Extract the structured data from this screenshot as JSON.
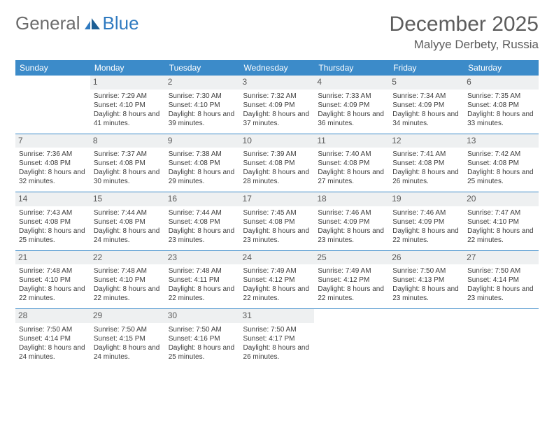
{
  "logo": {
    "text_a": "General",
    "text_b": "Blue"
  },
  "title": {
    "month": "December 2025",
    "location": "Malyye Derbety, Russia"
  },
  "colors": {
    "header_bg": "#3c8bc9",
    "header_text": "#ffffff",
    "daynum_bg": "#eef0f1",
    "border": "#3c8bc9",
    "body_text": "#3d3d3d",
    "title_text": "#5c5c5c",
    "logo_gray": "#6b6b6b",
    "logo_blue": "#2f7ac0"
  },
  "weekdays": [
    "Sunday",
    "Monday",
    "Tuesday",
    "Wednesday",
    "Thursday",
    "Friday",
    "Saturday"
  ],
  "weeks": [
    [
      null,
      {
        "num": "1",
        "sunrise": "Sunrise: 7:29 AM",
        "sunset": "Sunset: 4:10 PM",
        "daylight": "Daylight: 8 hours and 41 minutes."
      },
      {
        "num": "2",
        "sunrise": "Sunrise: 7:30 AM",
        "sunset": "Sunset: 4:10 PM",
        "daylight": "Daylight: 8 hours and 39 minutes."
      },
      {
        "num": "3",
        "sunrise": "Sunrise: 7:32 AM",
        "sunset": "Sunset: 4:09 PM",
        "daylight": "Daylight: 8 hours and 37 minutes."
      },
      {
        "num": "4",
        "sunrise": "Sunrise: 7:33 AM",
        "sunset": "Sunset: 4:09 PM",
        "daylight": "Daylight: 8 hours and 36 minutes."
      },
      {
        "num": "5",
        "sunrise": "Sunrise: 7:34 AM",
        "sunset": "Sunset: 4:09 PM",
        "daylight": "Daylight: 8 hours and 34 minutes."
      },
      {
        "num": "6",
        "sunrise": "Sunrise: 7:35 AM",
        "sunset": "Sunset: 4:08 PM",
        "daylight": "Daylight: 8 hours and 33 minutes."
      }
    ],
    [
      {
        "num": "7",
        "sunrise": "Sunrise: 7:36 AM",
        "sunset": "Sunset: 4:08 PM",
        "daylight": "Daylight: 8 hours and 32 minutes."
      },
      {
        "num": "8",
        "sunrise": "Sunrise: 7:37 AM",
        "sunset": "Sunset: 4:08 PM",
        "daylight": "Daylight: 8 hours and 30 minutes."
      },
      {
        "num": "9",
        "sunrise": "Sunrise: 7:38 AM",
        "sunset": "Sunset: 4:08 PM",
        "daylight": "Daylight: 8 hours and 29 minutes."
      },
      {
        "num": "10",
        "sunrise": "Sunrise: 7:39 AM",
        "sunset": "Sunset: 4:08 PM",
        "daylight": "Daylight: 8 hours and 28 minutes."
      },
      {
        "num": "11",
        "sunrise": "Sunrise: 7:40 AM",
        "sunset": "Sunset: 4:08 PM",
        "daylight": "Daylight: 8 hours and 27 minutes."
      },
      {
        "num": "12",
        "sunrise": "Sunrise: 7:41 AM",
        "sunset": "Sunset: 4:08 PM",
        "daylight": "Daylight: 8 hours and 26 minutes."
      },
      {
        "num": "13",
        "sunrise": "Sunrise: 7:42 AM",
        "sunset": "Sunset: 4:08 PM",
        "daylight": "Daylight: 8 hours and 25 minutes."
      }
    ],
    [
      {
        "num": "14",
        "sunrise": "Sunrise: 7:43 AM",
        "sunset": "Sunset: 4:08 PM",
        "daylight": "Daylight: 8 hours and 25 minutes."
      },
      {
        "num": "15",
        "sunrise": "Sunrise: 7:44 AM",
        "sunset": "Sunset: 4:08 PM",
        "daylight": "Daylight: 8 hours and 24 minutes."
      },
      {
        "num": "16",
        "sunrise": "Sunrise: 7:44 AM",
        "sunset": "Sunset: 4:08 PM",
        "daylight": "Daylight: 8 hours and 23 minutes."
      },
      {
        "num": "17",
        "sunrise": "Sunrise: 7:45 AM",
        "sunset": "Sunset: 4:08 PM",
        "daylight": "Daylight: 8 hours and 23 minutes."
      },
      {
        "num": "18",
        "sunrise": "Sunrise: 7:46 AM",
        "sunset": "Sunset: 4:09 PM",
        "daylight": "Daylight: 8 hours and 23 minutes."
      },
      {
        "num": "19",
        "sunrise": "Sunrise: 7:46 AM",
        "sunset": "Sunset: 4:09 PM",
        "daylight": "Daylight: 8 hours and 22 minutes."
      },
      {
        "num": "20",
        "sunrise": "Sunrise: 7:47 AM",
        "sunset": "Sunset: 4:10 PM",
        "daylight": "Daylight: 8 hours and 22 minutes."
      }
    ],
    [
      {
        "num": "21",
        "sunrise": "Sunrise: 7:48 AM",
        "sunset": "Sunset: 4:10 PM",
        "daylight": "Daylight: 8 hours and 22 minutes."
      },
      {
        "num": "22",
        "sunrise": "Sunrise: 7:48 AM",
        "sunset": "Sunset: 4:10 PM",
        "daylight": "Daylight: 8 hours and 22 minutes."
      },
      {
        "num": "23",
        "sunrise": "Sunrise: 7:48 AM",
        "sunset": "Sunset: 4:11 PM",
        "daylight": "Daylight: 8 hours and 22 minutes."
      },
      {
        "num": "24",
        "sunrise": "Sunrise: 7:49 AM",
        "sunset": "Sunset: 4:12 PM",
        "daylight": "Daylight: 8 hours and 22 minutes."
      },
      {
        "num": "25",
        "sunrise": "Sunrise: 7:49 AM",
        "sunset": "Sunset: 4:12 PM",
        "daylight": "Daylight: 8 hours and 22 minutes."
      },
      {
        "num": "26",
        "sunrise": "Sunrise: 7:50 AM",
        "sunset": "Sunset: 4:13 PM",
        "daylight": "Daylight: 8 hours and 23 minutes."
      },
      {
        "num": "27",
        "sunrise": "Sunrise: 7:50 AM",
        "sunset": "Sunset: 4:14 PM",
        "daylight": "Daylight: 8 hours and 23 minutes."
      }
    ],
    [
      {
        "num": "28",
        "sunrise": "Sunrise: 7:50 AM",
        "sunset": "Sunset: 4:14 PM",
        "daylight": "Daylight: 8 hours and 24 minutes."
      },
      {
        "num": "29",
        "sunrise": "Sunrise: 7:50 AM",
        "sunset": "Sunset: 4:15 PM",
        "daylight": "Daylight: 8 hours and 24 minutes."
      },
      {
        "num": "30",
        "sunrise": "Sunrise: 7:50 AM",
        "sunset": "Sunset: 4:16 PM",
        "daylight": "Daylight: 8 hours and 25 minutes."
      },
      {
        "num": "31",
        "sunrise": "Sunrise: 7:50 AM",
        "sunset": "Sunset: 4:17 PM",
        "daylight": "Daylight: 8 hours and 26 minutes."
      },
      null,
      null,
      null
    ]
  ]
}
